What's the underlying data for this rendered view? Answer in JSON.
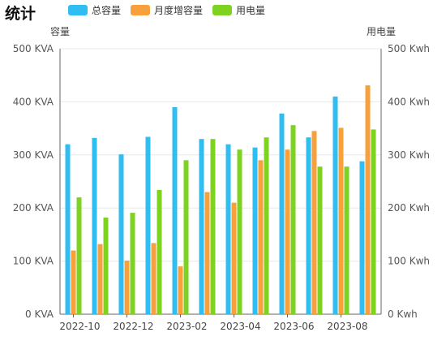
{
  "chart_data": {
    "type": "bar",
    "title": "统计",
    "categories": [
      "2022-10",
      "2022-11",
      "2022-12",
      "2023-01",
      "2023-02",
      "2023-03",
      "2023-04",
      "2023-05",
      "2023-06",
      "2023-07",
      "2023-08",
      "2023-09"
    ],
    "x_tick_labels": [
      "2022-10",
      "2022-12",
      "2023-02",
      "2023-04",
      "2023-06",
      "2023-08"
    ],
    "series": [
      {
        "name": "总容量",
        "axis": "left",
        "color": "#2fbdf2",
        "values": [
          320,
          332,
          301,
          334,
          390,
          330,
          320,
          314,
          378,
          333,
          410,
          288
        ]
      },
      {
        "name": "月度增容量",
        "axis": "left",
        "color": "#f8a03b",
        "values": [
          120,
          132,
          101,
          134,
          90,
          230,
          210,
          290,
          310,
          345,
          351,
          431
        ]
      },
      {
        "name": "用电量",
        "axis": "right",
        "color": "#7ed321",
        "values": [
          220,
          182,
          191,
          234,
          290,
          330,
          310,
          333,
          356,
          278,
          278,
          348
        ]
      }
    ],
    "y_left": {
      "label": "容量",
      "min": 0,
      "max": 500,
      "ticks": [
        "0 KVA",
        "100 KVA",
        "200 KVA",
        "300 KVA",
        "400 KVA",
        "500 KVA"
      ]
    },
    "y_right": {
      "label": "用电量",
      "min": 0,
      "max": 500,
      "ticks": [
        "0 Kwh",
        "100 Kwh",
        "200 Kwh",
        "300 Kwh",
        "400 Kwh",
        "500 Kwh"
      ]
    },
    "legend_position": "top",
    "grid": true
  }
}
